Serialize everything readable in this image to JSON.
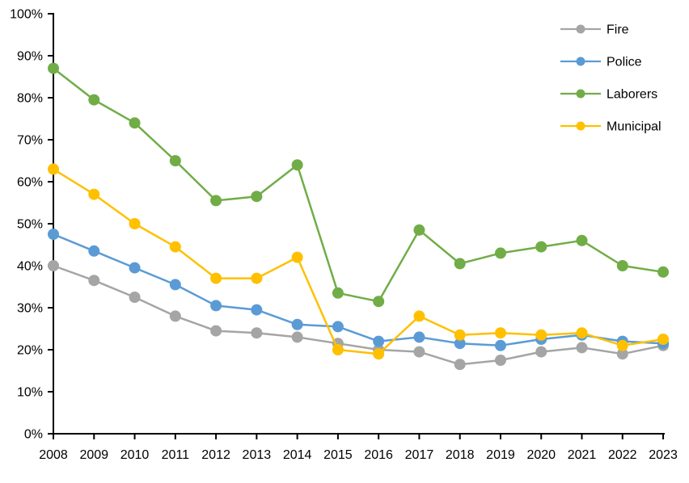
{
  "chart_data": {
    "type": "line",
    "title": "",
    "xlabel": "",
    "ylabel": "",
    "background_color": "#FFFFFF",
    "axis_color": "#000000",
    "grid": false,
    "legend_position": "top-right-inside",
    "ylim": [
      0,
      100
    ],
    "ytick_step": 10,
    "ytick_suffix": "%",
    "x": [
      "2008",
      "2009",
      "2010",
      "2011",
      "2012",
      "2013",
      "2014",
      "2015",
      "2016",
      "2017",
      "2018",
      "2019",
      "2020",
      "2021",
      "2022",
      "2023"
    ],
    "series": [
      {
        "name": "Fire",
        "color": "#A5A5A5",
        "values": [
          40,
          36.5,
          32.5,
          28,
          24.5,
          24,
          23,
          21.5,
          20,
          19.5,
          16.5,
          17.5,
          19.5,
          20.5,
          19,
          21
        ]
      },
      {
        "name": "Police",
        "color": "#5B9BD5",
        "values": [
          47.5,
          43.5,
          39.5,
          35.5,
          30.5,
          29.5,
          26,
          25.5,
          22,
          23,
          21.5,
          21,
          22.5,
          23.5,
          22,
          21.5
        ]
      },
      {
        "name": "Laborers",
        "color": "#70AD47",
        "values": [
          87,
          79.5,
          74,
          65,
          55.5,
          56.5,
          64,
          33.5,
          31.5,
          48.5,
          40.5,
          43,
          44.5,
          46,
          40,
          38.5
        ]
      },
      {
        "name": "Municipal",
        "color": "#FFC000",
        "values": [
          63,
          57,
          50,
          44.5,
          37,
          37,
          42,
          20,
          19,
          28,
          23.5,
          24,
          23.5,
          24,
          21,
          22.5
        ]
      }
    ]
  }
}
